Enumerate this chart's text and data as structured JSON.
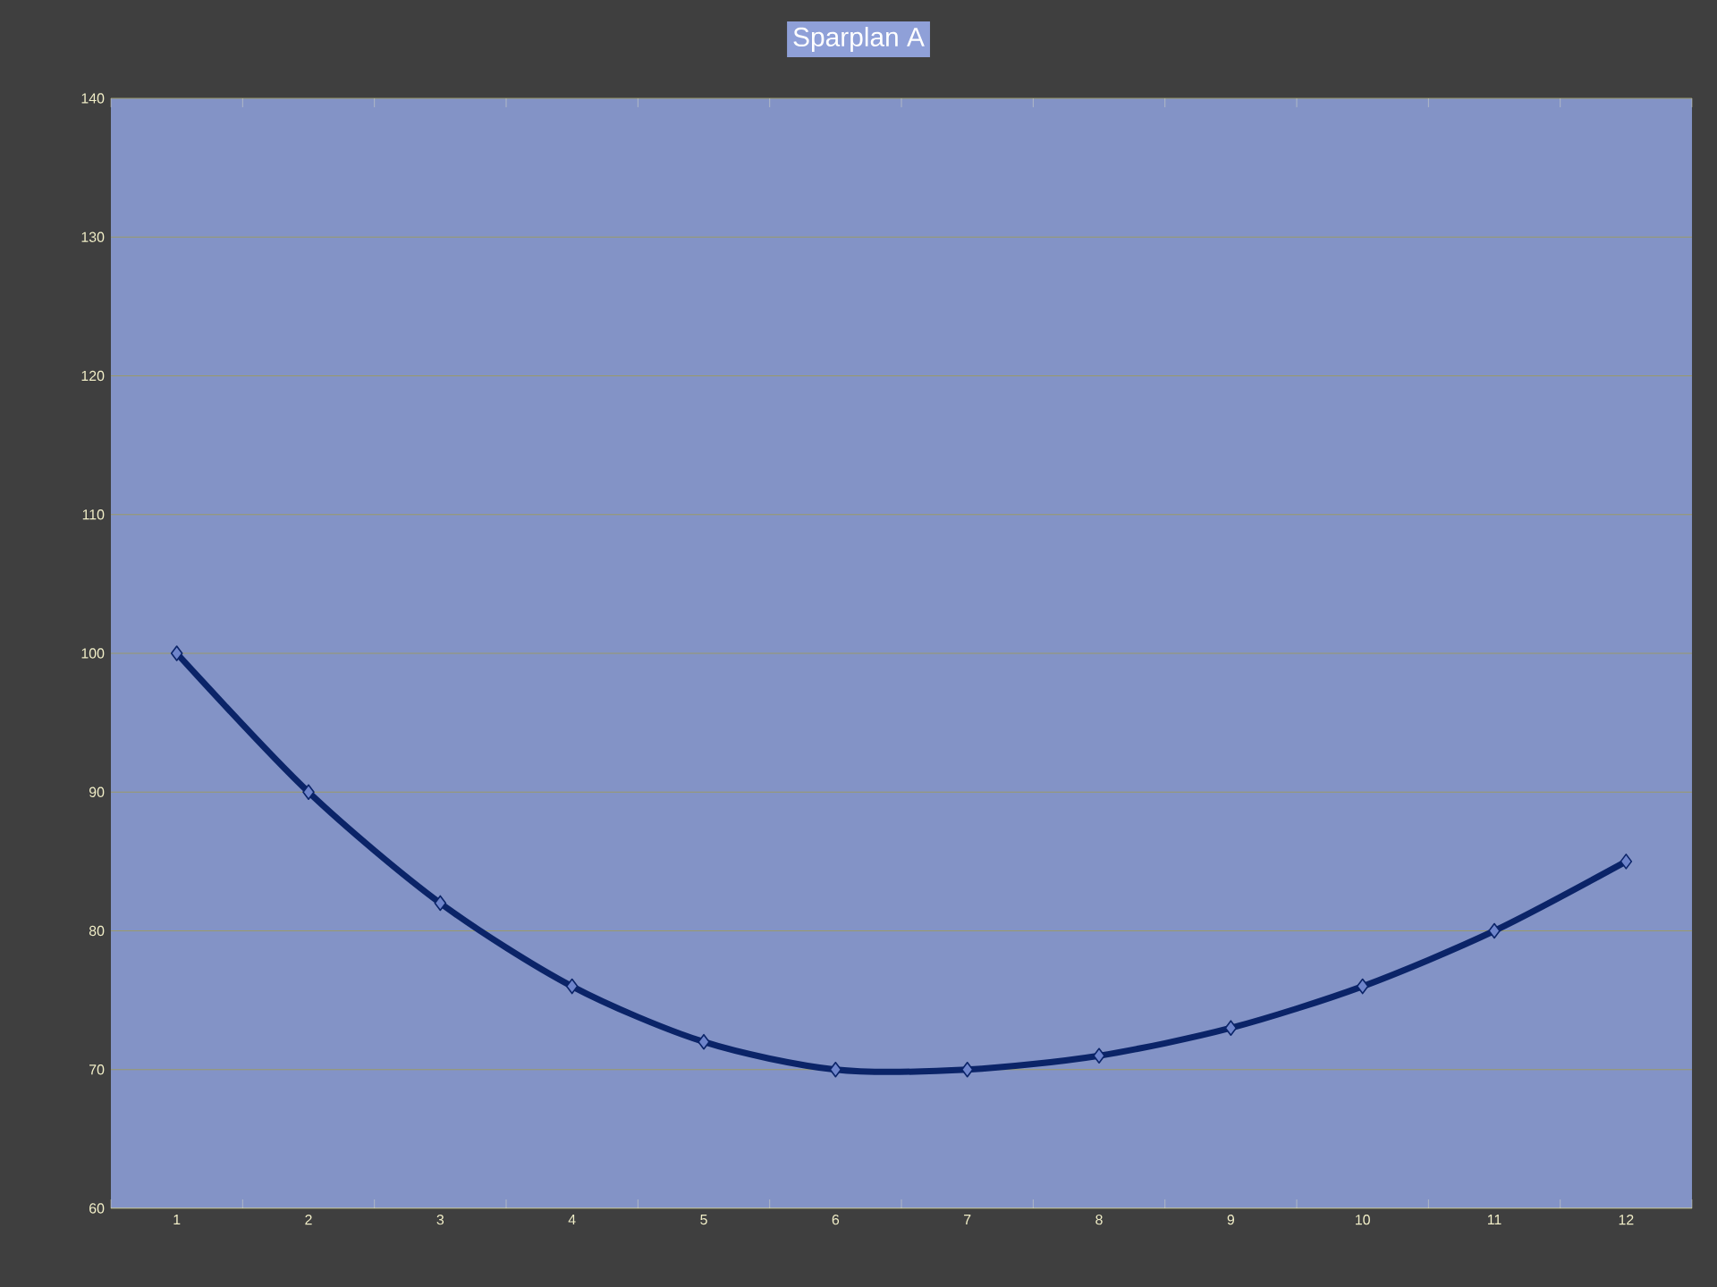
{
  "chart_data": {
    "type": "line",
    "title": "Sparplan A",
    "categories": [
      "1",
      "2",
      "3",
      "4",
      "5",
      "6",
      "7",
      "8",
      "9",
      "10",
      "11",
      "12"
    ],
    "series": [
      {
        "color": "#0b2468",
        "values": [
          100,
          90,
          82,
          76,
          72,
          70,
          70,
          71,
          73,
          76,
          80,
          85
        ]
      }
    ],
    "ylim": [
      60,
      140
    ],
    "yticks": [
      60,
      70,
      80,
      90,
      100,
      110,
      120,
      130,
      140
    ],
    "grid": "y",
    "marker": "diamond",
    "line_style": "solid"
  }
}
